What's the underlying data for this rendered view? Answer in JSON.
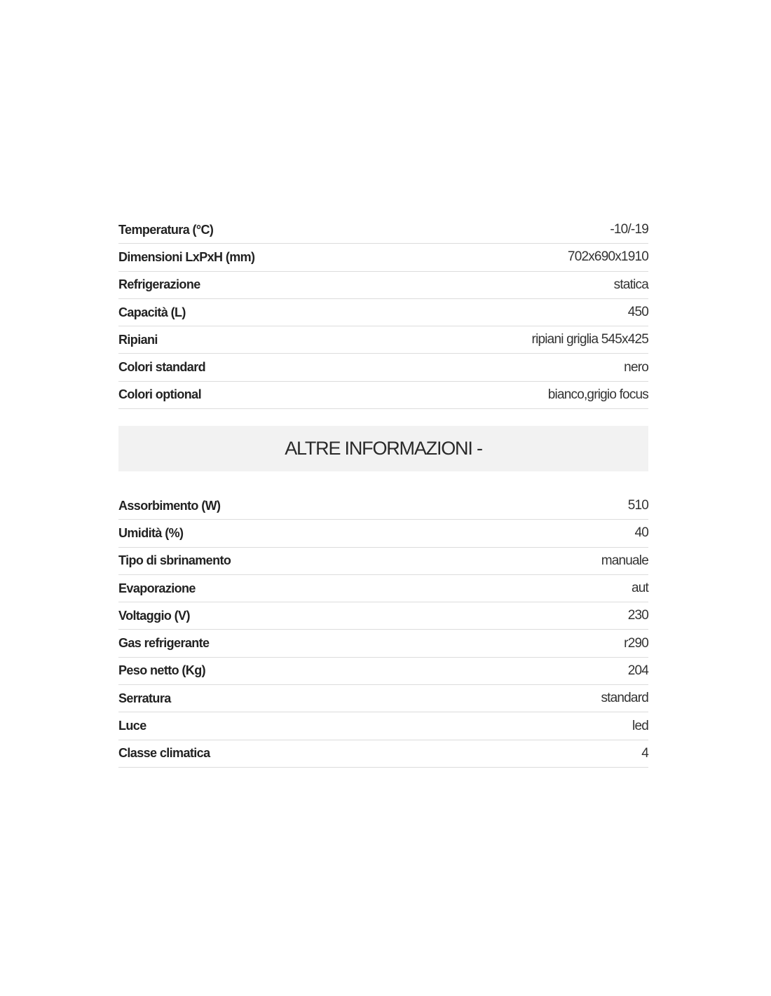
{
  "specs": [
    {
      "label": "Temperatura (°C)",
      "value": "-10/-19"
    },
    {
      "label": "Dimensioni LxPxH (mm)",
      "value": "702x690x1910"
    },
    {
      "label": "Refrigerazione",
      "value": "statica"
    },
    {
      "label": "Capacità (L)",
      "value": "450"
    },
    {
      "label": "Ripiani",
      "value": "ripiani griglia 545x425"
    },
    {
      "label": "Colori standard",
      "value": "nero"
    },
    {
      "label": "Colori optional",
      "value": "bianco,grigio focus"
    }
  ],
  "other_header": "ALTRE INFORMAZIONI -",
  "other": [
    {
      "label": "Assorbimento (W)",
      "value": "510"
    },
    {
      "label": "Umidità (%)",
      "value": "40"
    },
    {
      "label": "Tipo di sbrinamento",
      "value": "manuale"
    },
    {
      "label": "Evaporazione",
      "value": "aut"
    },
    {
      "label": "Voltaggio (V)",
      "value": "230"
    },
    {
      "label": "Gas refrigerante",
      "value": "r290"
    },
    {
      "label": "Peso netto (Kg)",
      "value": "204"
    },
    {
      "label": "Serratura",
      "value": "standard"
    },
    {
      "label": "Luce",
      "value": "led"
    },
    {
      "label": "Classe climatica",
      "value": "4"
    }
  ]
}
